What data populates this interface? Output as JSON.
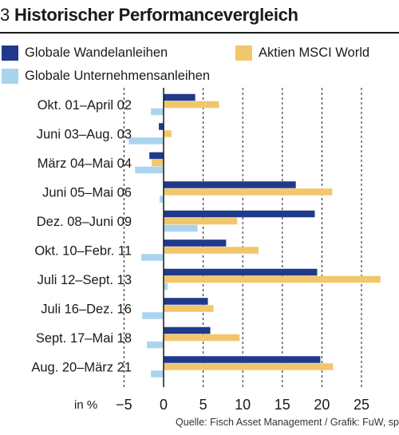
{
  "header": {
    "number": "3",
    "title": "Historischer Performancevergleich"
  },
  "legend": [
    {
      "label": "Globale Wandelanleihen",
      "color": "#1f3a8a"
    },
    {
      "label": "Aktien MSCI World",
      "color": "#f2c66d"
    },
    {
      "label": "Globale Unternehmensanleihen",
      "color": "#aad4ee"
    }
  ],
  "source": "Quelle: Fisch Asset Management / Grafik: FuW, sp",
  "chart_data": {
    "type": "bar",
    "orientation": "horizontal",
    "title": "Historischer Performancevergleich",
    "xlabel": "in %",
    "xlim": [
      -5,
      27
    ],
    "xticks": [
      -5,
      0,
      5,
      10,
      15,
      20,
      25
    ],
    "grid": "vertical dashed",
    "legend_position": "top",
    "categories": [
      "Okt. 01–April 02",
      "Juni 03–Aug. 03",
      "März 04–Mai 04",
      "Juni 05–Mai 06",
      "Dez. 08–Juni 09",
      "Okt. 10–Febr. 11",
      "Juli 12–Sept. 13",
      "Juli 16–Dez. 16",
      "Sept. 17–Mai 18",
      "Aug. 20–März 21"
    ],
    "series": [
      {
        "name": "Globale Wandelanleihen",
        "color": "#1f3a8a",
        "values": [
          4.0,
          -0.6,
          -1.8,
          16.7,
          19.1,
          7.9,
          19.4,
          5.6,
          5.9,
          19.8
        ]
      },
      {
        "name": "Aktien MSCI World",
        "color": "#f2c66d",
        "values": [
          7.0,
          1.0,
          -1.5,
          21.3,
          9.3,
          12.0,
          27.4,
          6.3,
          9.6,
          21.4
        ]
      },
      {
        "name": "Globale Unternehmensanleihen",
        "color": "#aad4ee",
        "values": [
          -1.6,
          -4.4,
          -3.6,
          -0.5,
          4.3,
          -2.8,
          0.5,
          -2.7,
          -2.1,
          -1.6
        ]
      }
    ]
  }
}
